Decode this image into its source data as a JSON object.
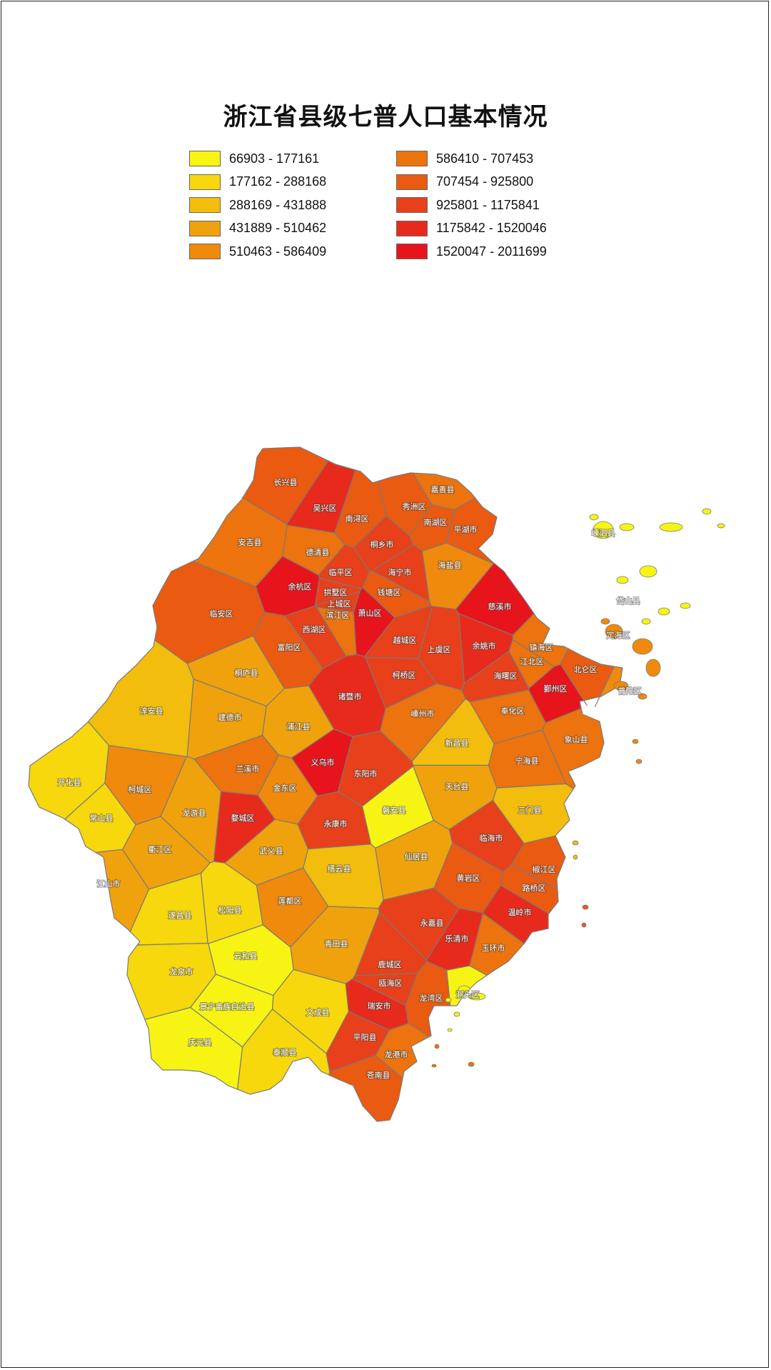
{
  "title": "浙江省县级七普人口基本情况",
  "legend": [
    {
      "label": "66903 - 177161",
      "color": "#f7f414"
    },
    {
      "label": "177162 - 288168",
      "color": "#f6d80c"
    },
    {
      "label": "288169 - 431888",
      "color": "#f2bd0c"
    },
    {
      "label": "431889 - 510462",
      "color": "#f0a20c"
    },
    {
      "label": "510463 - 586409",
      "color": "#ef8a0c"
    },
    {
      "label": "586410 - 707453",
      "color": "#ec730d"
    },
    {
      "label": "707454 - 925800",
      "color": "#ea5a10"
    },
    {
      "label": "925801 - 1175841",
      "color": "#e8401a"
    },
    {
      "label": "1175842 - 1520046",
      "color": "#e82a1c"
    },
    {
      "label": "1520047 - 2011699",
      "color": "#e8141c"
    }
  ],
  "counties": [
    {
      "name": "长兴县",
      "class": 6
    },
    {
      "name": "吴兴区",
      "class": 8
    },
    {
      "name": "南浔区",
      "class": 6
    },
    {
      "name": "嘉善县",
      "class": 5
    },
    {
      "name": "秀洲区",
      "class": 6
    },
    {
      "name": "南湖区",
      "class": 6
    },
    {
      "name": "平湖市",
      "class": 6
    },
    {
      "name": "安吉县",
      "class": 5
    },
    {
      "name": "德清县",
      "class": 5
    },
    {
      "name": "桐乡市",
      "class": 7
    },
    {
      "name": "海盐县",
      "class": 4
    },
    {
      "name": "余杭区",
      "class": 9
    },
    {
      "name": "临平区",
      "class": 7
    },
    {
      "name": "海宁市",
      "class": 7
    },
    {
      "name": "拱墅区",
      "class": 7
    },
    {
      "name": "钱塘区",
      "class": 6
    },
    {
      "name": "上城区",
      "class": 7
    },
    {
      "name": "滨江区",
      "class": 5
    },
    {
      "name": "萧山区",
      "class": 9
    },
    {
      "name": "西湖区",
      "class": 7
    },
    {
      "name": "临安区",
      "class": 6
    },
    {
      "name": "富阳区",
      "class": 6
    },
    {
      "name": "越城区",
      "class": 7
    },
    {
      "name": "上虞区",
      "class": 7
    },
    {
      "name": "慈溪市",
      "class": 9
    },
    {
      "name": "余姚市",
      "class": 8
    },
    {
      "name": "镇海区",
      "class": 5
    },
    {
      "name": "江北区",
      "class": 5
    },
    {
      "name": "海曙区",
      "class": 7
    },
    {
      "name": "北仑区",
      "class": 6
    },
    {
      "name": "鄞州区",
      "class": 9
    },
    {
      "name": "定海区",
      "class": 4
    },
    {
      "name": "普陀区",
      "class": 4
    },
    {
      "name": "岱山县",
      "class": 0
    },
    {
      "name": "嵊泗县",
      "class": 0
    },
    {
      "name": "桐庐县",
      "class": 3
    },
    {
      "name": "淳安县",
      "class": 2
    },
    {
      "name": "建德市",
      "class": 3
    },
    {
      "name": "浦江县",
      "class": 3
    },
    {
      "name": "诸暨市",
      "class": 8
    },
    {
      "name": "柯桥区",
      "class": 7
    },
    {
      "name": "嵊州市",
      "class": 5
    },
    {
      "name": "奉化区",
      "class": 5
    },
    {
      "name": "象山县",
      "class": 5
    },
    {
      "name": "开化县",
      "class": 1
    },
    {
      "name": "常山县",
      "class": 1
    },
    {
      "name": "柯城区",
      "class": 4
    },
    {
      "name": "衢江区",
      "class": 3
    },
    {
      "name": "龙游县",
      "class": 3
    },
    {
      "name": "江山市",
      "class": 3
    },
    {
      "name": "兰溪市",
      "class": 5
    },
    {
      "name": "婺城区",
      "class": 8
    },
    {
      "name": "金东区",
      "class": 4
    },
    {
      "name": "义乌市",
      "class": 9
    },
    {
      "name": "东阳市",
      "class": 7
    },
    {
      "name": "磐安县",
      "class": 0
    },
    {
      "name": "永康市",
      "class": 7
    },
    {
      "name": "武义县",
      "class": 3
    },
    {
      "name": "新昌县",
      "class": 2
    },
    {
      "name": "天台县",
      "class": 3
    },
    {
      "name": "宁海县",
      "class": 5
    },
    {
      "name": "三门县",
      "class": 2
    },
    {
      "name": "临海市",
      "class": 7
    },
    {
      "name": "椒江区",
      "class": 6
    },
    {
      "name": "黄岩区",
      "class": 6
    },
    {
      "name": "路桥区",
      "class": 6
    },
    {
      "name": "温岭市",
      "class": 8
    },
    {
      "name": "玉环市",
      "class": 5
    },
    {
      "name": "仙居县",
      "class": 3
    },
    {
      "name": "缙云县",
      "class": 2
    },
    {
      "name": "遂昌县",
      "class": 1
    },
    {
      "name": "松阳县",
      "class": 1
    },
    {
      "name": "莲都区",
      "class": 4
    },
    {
      "name": "青田县",
      "class": 3
    },
    {
      "name": "龙泉市",
      "class": 1
    },
    {
      "name": "云和县",
      "class": 0
    },
    {
      "name": "景宁畲族自治县",
      "class": 0
    },
    {
      "name": "庆元县",
      "class": 0
    },
    {
      "name": "文成县",
      "class": 1
    },
    {
      "name": "泰顺县",
      "class": 1
    },
    {
      "name": "永嘉县",
      "class": 7
    },
    {
      "name": "鹿城区",
      "class": 7
    },
    {
      "name": "瓯海区",
      "class": 7
    },
    {
      "name": "龙湾区",
      "class": 6
    },
    {
      "name": "洞头区",
      "class": 0
    },
    {
      "name": "乐清市",
      "class": 8
    },
    {
      "name": "瑞安市",
      "class": 8
    },
    {
      "name": "平阳县",
      "class": 7
    },
    {
      "name": "苍南县",
      "class": 6
    },
    {
      "name": "龙港市",
      "class": 5
    }
  ]
}
